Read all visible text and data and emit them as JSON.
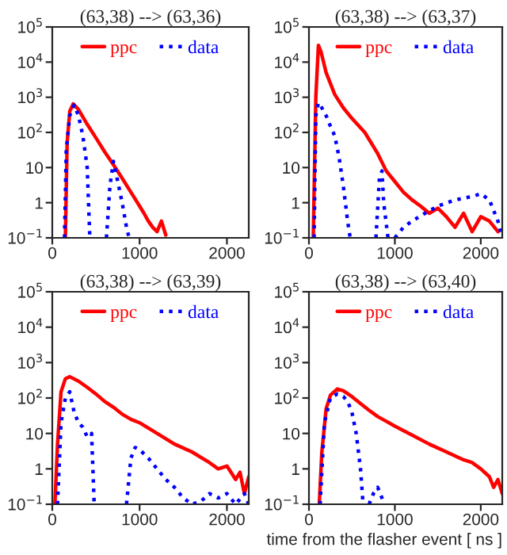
{
  "chart_data": [
    {
      "type": "line",
      "title": "(63,38) --> (63,36)",
      "log": "y",
      "xlim": [
        0,
        2250
      ],
      "ylim": [
        0.1,
        100000
      ],
      "xticks": [
        0,
        1000,
        2000
      ],
      "yticks": [
        {
          "value": 0.1,
          "label": "10$^{−1}$"
        },
        1,
        10,
        {
          "value": 100,
          "label": "10$^{2}$"
        },
        {
          "value": 1000,
          "label": "10$^{3}$"
        },
        {
          "value": 10000,
          "label": "10$^{4}$"
        },
        {
          "value": 100000,
          "label": "10$^{5}$"
        }
      ],
      "legend": "top",
      "grid": false,
      "series": [
        {
          "name": "ppc",
          "color": "#ff0000",
          "line_style": "solid",
          "x": [
            150,
            170,
            200,
            240,
            300,
            400,
            500,
            600,
            700,
            800,
            900,
            1000,
            1050,
            1100,
            1150,
            1200,
            1250,
            1300
          ],
          "values": [
            0.1,
            50,
            400,
            650,
            450,
            170,
            70,
            28,
            12,
            5,
            2,
            0.8,
            0.5,
            0.3,
            0.2,
            0.15,
            0.3,
            0.12
          ]
        },
        {
          "name": "data",
          "color": "#0000ff",
          "line_style": "dotted",
          "x": [
            140,
            160,
            200,
            250,
            300,
            350,
            400,
            430,
            530,
            620,
            660,
            700,
            750,
            800,
            850,
            880
          ],
          "values": [
            0.1,
            30,
            300,
            600,
            300,
            80,
            10,
            0.1,
            null,
            0.1,
            3,
            15,
            4,
            1,
            0.2,
            0.1
          ]
        }
      ]
    },
    {
      "type": "line",
      "title": "(63,38) --> (63,37)",
      "log": "y",
      "xlim": [
        0,
        2250
      ],
      "ylim": [
        0.1,
        100000
      ],
      "xticks": [
        0,
        1000,
        2000
      ],
      "yticks": [
        {
          "value": 0.1,
          "label": "10$^{−1}$"
        },
        1,
        10,
        {
          "value": 100,
          "label": "10$^{2}$"
        },
        {
          "value": 1000,
          "label": "10$^{3}$"
        },
        {
          "value": 10000,
          "label": "10$^{4}$"
        },
        {
          "value": 100000,
          "label": "10$^{5}$"
        }
      ],
      "legend": "top",
      "grid": false,
      "series": [
        {
          "name": "ppc",
          "color": "#ff0000",
          "line_style": "solid",
          "x": [
            50,
            80,
            110,
            140,
            200,
            300,
            400,
            500,
            650,
            800,
            900,
            1000,
            1100,
            1200,
            1300,
            1400,
            1500,
            1600,
            1700,
            1800,
            1900,
            2000,
            2100,
            2200
          ],
          "values": [
            0.1,
            1000,
            30000,
            20000,
            5000,
            1200,
            500,
            250,
            100,
            25,
            8,
            4,
            2,
            1.2,
            0.8,
            0.5,
            0.7,
            0.4,
            0.2,
            0.5,
            0.15,
            0.4,
            0.3,
            0.15
          ]
        },
        {
          "name": "data",
          "color": "#0000ff",
          "line_style": "dotted",
          "x": [
            60,
            80,
            110,
            150,
            200,
            250,
            300,
            350,
            400,
            450,
            480,
            630,
            780,
            820,
            850,
            870,
            920,
            960,
            1000,
            1100,
            1200,
            1350,
            1500,
            1700,
            1900,
            2000,
            2100,
            2200,
            2250
          ],
          "values": [
            0.1,
            300,
            700,
            500,
            300,
            150,
            80,
            20,
            3,
            0.3,
            0.1,
            null,
            0.1,
            5,
            8,
            1,
            0.1,
            null,
            0.1,
            0.2,
            0.3,
            0.5,
            0.8,
            1.2,
            1.5,
            1.8,
            1.2,
            0.3,
            0.1
          ]
        }
      ]
    },
    {
      "type": "line",
      "title": "(63,38) --> (63,39)",
      "log": "y",
      "xlim": [
        0,
        2250
      ],
      "ylim": [
        0.1,
        100000
      ],
      "xticks": [
        0,
        1000,
        2000
      ],
      "yticks": [
        {
          "value": 0.1,
          "label": "10$^{−1}$"
        },
        1,
        10,
        {
          "value": 100,
          "label": "10$^{2}$"
        },
        {
          "value": 1000,
          "label": "10$^{3}$"
        },
        {
          "value": 10000,
          "label": "10$^{4}$"
        },
        {
          "value": 100000,
          "label": "10$^{5}$"
        }
      ],
      "legend": "top",
      "grid": false,
      "series": [
        {
          "name": "ppc",
          "color": "#ff0000",
          "line_style": "solid",
          "x": [
            30,
            60,
            100,
            150,
            200,
            300,
            400,
            500,
            600,
            700,
            800,
            900,
            1000,
            1200,
            1400,
            1600,
            1800,
            1900,
            2000,
            2100,
            2150,
            2200,
            2250
          ],
          "values": [
            0.1,
            5,
            150,
            350,
            400,
            300,
            200,
            130,
            80,
            55,
            35,
            25,
            20,
            10,
            5,
            3,
            1.5,
            1,
            1.2,
            0.5,
            0.8,
            0.2,
            0.6
          ]
        },
        {
          "name": "data",
          "color": "#0000ff",
          "line_style": "dotted",
          "x": [
            60,
            100,
            150,
            200,
            250,
            300,
            350,
            400,
            450,
            480,
            650,
            850,
            900,
            950,
            1000,
            1100,
            1200,
            1300,
            1400,
            1500,
            1600,
            1700,
            1800,
            1900,
            2000,
            2100,
            2200,
            2250
          ],
          "values": [
            0.1,
            20,
            100,
            150,
            40,
            20,
            15,
            8,
            10,
            0.1,
            null,
            0.1,
            2,
            4,
            3.5,
            2,
            1,
            0.5,
            0.3,
            0.15,
            0.1,
            0.12,
            0.2,
            0.15,
            0.2,
            0.1,
            0.2,
            0.1
          ]
        }
      ]
    },
    {
      "type": "line",
      "title": "(63,38) --> (63,40)",
      "xlabel": "time from the flasher event [ ns ]",
      "log": "y",
      "xlim": [
        0,
        2250
      ],
      "ylim": [
        0.1,
        100000
      ],
      "xticks": [
        0,
        1000,
        2000
      ],
      "yticks": [
        {
          "value": 0.1,
          "label": "10$^{−1}$"
        },
        1,
        10,
        {
          "value": 100,
          "label": "10$^{2}$"
        },
        {
          "value": 1000,
          "label": "10$^{3}$"
        },
        {
          "value": 10000,
          "label": "10$^{4}$"
        },
        {
          "value": 100000,
          "label": "10$^{5}$"
        }
      ],
      "legend": "top",
      "grid": false,
      "series": [
        {
          "name": "ppc",
          "color": "#ff0000",
          "line_style": "solid",
          "x": [
            120,
            150,
            200,
            250,
            330,
            400,
            500,
            600,
            700,
            800,
            900,
            1000,
            1200,
            1400,
            1600,
            1800,
            1900,
            2000,
            2100,
            2150,
            2200,
            2250
          ],
          "values": [
            0.1,
            3,
            50,
            120,
            180,
            160,
            110,
            70,
            45,
            30,
            22,
            16,
            9,
            5,
            3,
            1.8,
            1.5,
            1,
            0.6,
            0.3,
            0.5,
            0.2
          ]
        },
        {
          "name": "data",
          "color": "#0000ff",
          "line_style": "dotted",
          "x": [
            130,
            180,
            250,
            330,
            400,
            450,
            500,
            550,
            600,
            630,
            660,
            700,
            750,
            800,
            850,
            880
          ],
          "values": [
            0.1,
            20,
            100,
            130,
            110,
            80,
            40,
            10,
            1,
            0.1,
            null,
            0.1,
            0.2,
            0.3,
            0.15,
            0.1
          ]
        }
      ]
    }
  ]
}
